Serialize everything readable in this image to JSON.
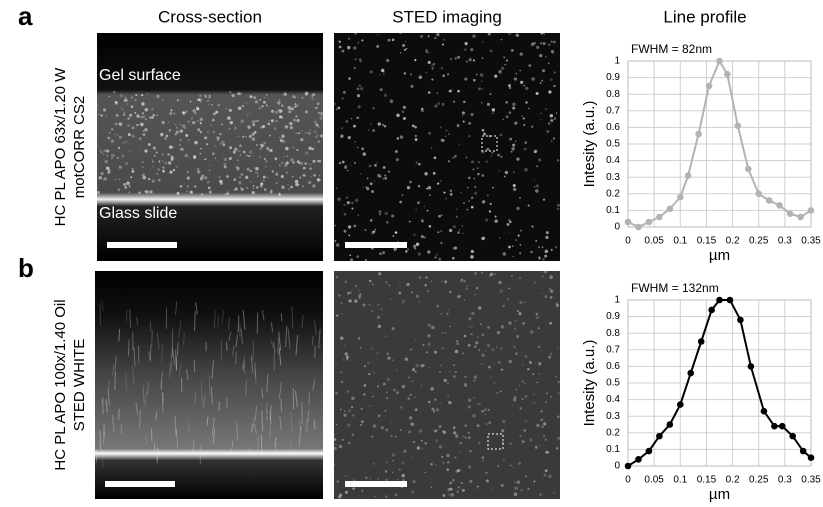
{
  "panel_labels": [
    "a",
    "b"
  ],
  "column_headers": [
    "Cross-section",
    "STED imaging",
    "Line profile"
  ],
  "row_labels": [
    [
      "HC PL APO 63x/1.20 W",
      "motCORR CS2"
    ],
    [
      "HC PL APO 100x/1.40 Oil",
      "STED WHITE"
    ]
  ],
  "image_labels": [
    "Gel surface",
    "Glass slide"
  ],
  "chart_data": [
    {
      "type": "line",
      "annotation": "FWHM = 82nm",
      "x_label": "µm",
      "y_label": "Intesity (a.u.)",
      "color": "#b3b3b3",
      "grid": true,
      "x": [
        0,
        0.02,
        0.04,
        0.06,
        0.08,
        0.1,
        0.115,
        0.135,
        0.155,
        0.175,
        0.19,
        0.21,
        0.23,
        0.25,
        0.27,
        0.29,
        0.31,
        0.33,
        0.35
      ],
      "values": [
        0.03,
        0.0,
        0.03,
        0.06,
        0.11,
        0.18,
        0.31,
        0.56,
        0.85,
        1.0,
        0.92,
        0.61,
        0.35,
        0.2,
        0.16,
        0.13,
        0.08,
        0.06,
        0.1
      ],
      "xlim": [
        0,
        0.35
      ],
      "ylim": [
        0,
        1
      ],
      "xticks": [
        0,
        0.05,
        0.1,
        0.15,
        0.2,
        0.25,
        0.3,
        0.35
      ],
      "yticks": [
        0,
        0.1,
        0.2,
        0.3,
        0.4,
        0.5,
        0.6,
        0.7,
        0.8,
        0.9,
        1
      ]
    },
    {
      "type": "line",
      "annotation": "FWHM = 132nm",
      "x_label": "µm",
      "y_label": "Intesity (a.u.)",
      "color": "#000000",
      "grid": true,
      "x": [
        0,
        0.02,
        0.04,
        0.06,
        0.08,
        0.1,
        0.12,
        0.14,
        0.16,
        0.175,
        0.195,
        0.215,
        0.235,
        0.26,
        0.28,
        0.295,
        0.315,
        0.335,
        0.35
      ],
      "values": [
        0.0,
        0.04,
        0.09,
        0.18,
        0.25,
        0.37,
        0.56,
        0.75,
        0.94,
        1.0,
        1.0,
        0.88,
        0.6,
        0.33,
        0.24,
        0.24,
        0.18,
        0.09,
        0.05
      ],
      "xlim": [
        0,
        0.35
      ],
      "ylim": [
        0,
        1
      ],
      "xticks": [
        0,
        0.05,
        0.1,
        0.15,
        0.2,
        0.25,
        0.3,
        0.35
      ],
      "yticks": [
        0,
        0.1,
        0.2,
        0.3,
        0.4,
        0.5,
        0.6,
        0.7,
        0.8,
        0.9,
        1
      ]
    }
  ]
}
